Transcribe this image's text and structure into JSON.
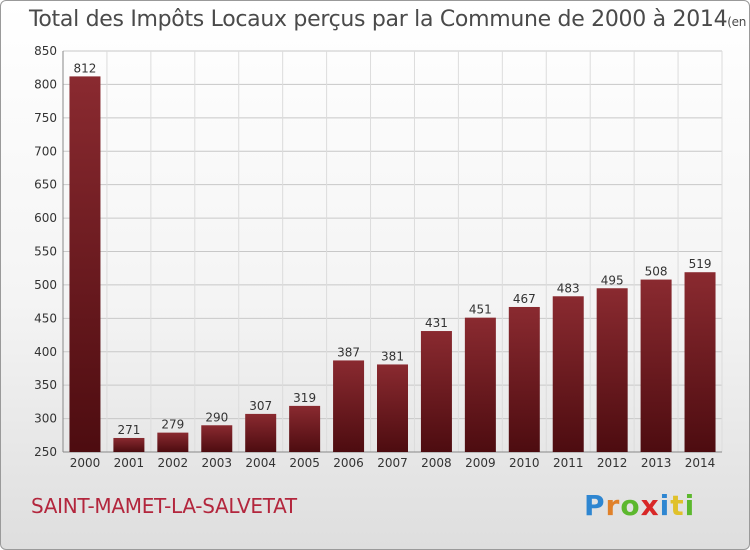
{
  "header": {
    "title": "Total des Impôts Locaux perçus par la Commune de 2000 à 2014",
    "unit": "(en milliers d'€)"
  },
  "footer": {
    "commune": "SAINT-MAMET-LA-SALVETAT",
    "logo": "Proxiti"
  },
  "colors": {
    "bar_top": "#8a2a30",
    "bar_bottom": "#4d0c10",
    "commune_text": "#b3263d"
  },
  "chart_data": {
    "type": "bar",
    "title": "Total des Impôts Locaux perçus par la Commune de 2000 à 2014",
    "subtitle": "(en milliers d'€)",
    "categories": [
      "2000",
      "2001",
      "2002",
      "2003",
      "2004",
      "2005",
      "2006",
      "2007",
      "2008",
      "2009",
      "2010",
      "2011",
      "2012",
      "2013",
      "2014"
    ],
    "values": [
      812,
      271,
      279,
      290,
      307,
      319,
      387,
      381,
      431,
      451,
      467,
      483,
      495,
      508,
      519
    ],
    "ylim": [
      250,
      850
    ],
    "yticks": [
      250,
      300,
      350,
      400,
      450,
      500,
      550,
      600,
      650,
      700,
      750,
      800,
      850
    ],
    "grid": true,
    "legend": "none"
  }
}
